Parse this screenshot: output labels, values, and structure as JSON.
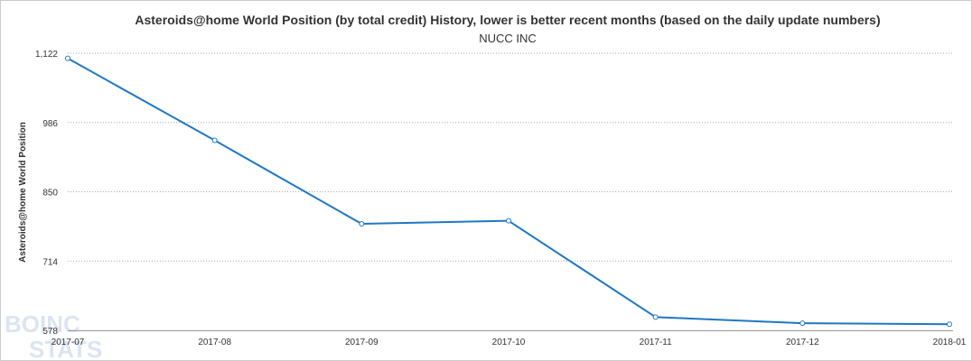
{
  "chart_data": {
    "type": "line",
    "title": "Asteroids@home World Position (by total credit) History, lower is better recent months (based on the daily update numbers)",
    "subtitle": "NUCC INC",
    "ylabel": "Asteroids@home World Position",
    "xlabel": "",
    "ylim": [
      578,
      1122
    ],
    "yticks": [
      "1,122",
      "986",
      "850",
      "714",
      "578"
    ],
    "ytick_values": [
      1122,
      986,
      850,
      714,
      578
    ],
    "categories": [
      "2017-07",
      "2017-08",
      "2017-09",
      "2017-10",
      "2017-11",
      "2017-12",
      "2018-01"
    ],
    "series": [
      {
        "name": "",
        "values": [
          1112,
          951,
          787,
          793,
          604,
          592,
          590
        ]
      }
    ],
    "grid": true,
    "legend": "none",
    "colors": {
      "line": "#1f77c4",
      "grid": "#aaaaaa"
    }
  },
  "watermark": {
    "line1": "BOINC",
    "line2": "STATS"
  }
}
